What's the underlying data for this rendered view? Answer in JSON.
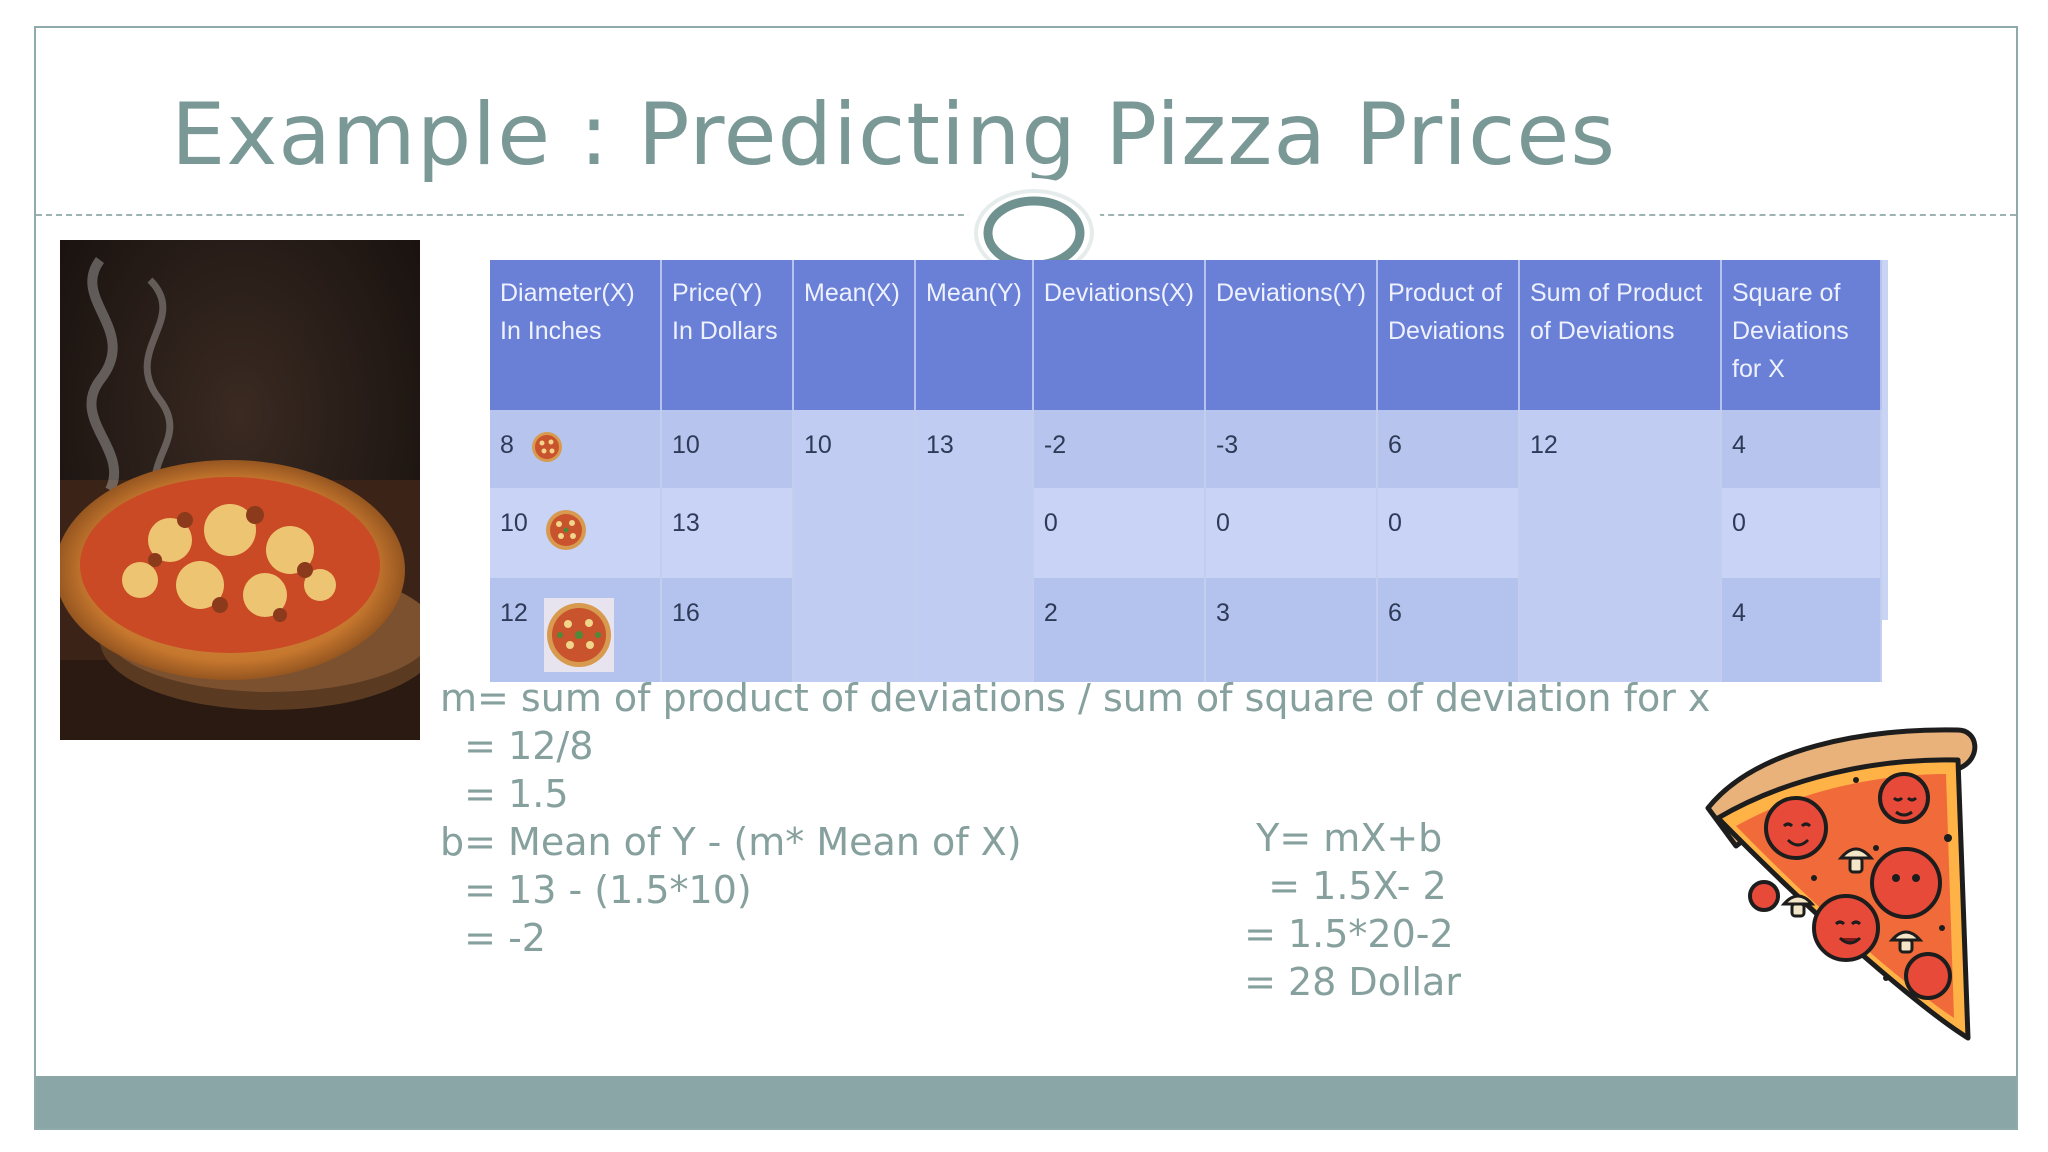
{
  "slide": {
    "title": "Example : Predicting Pizza Prices"
  },
  "table": {
    "headers": [
      "Diameter(X) In Inches",
      "Price(Y) In Dollars",
      "Mean(X)",
      "Mean(Y)",
      "Deviations(X)",
      "Deviations(Y)",
      "Product of Deviations",
      "Sum of Product of Deviations",
      "Square of Deviations for X"
    ],
    "rows": [
      {
        "diameter": "8",
        "price": "10",
        "dev_x": "-2",
        "dev_y": "-3",
        "product": "6",
        "square": "4"
      },
      {
        "diameter": "10",
        "price": "13",
        "dev_x": "0",
        "dev_y": "0",
        "product": "0",
        "square": "0"
      },
      {
        "diameter": "12",
        "price": "16",
        "dev_x": "2",
        "dev_y": "3",
        "product": "6",
        "square": "4"
      }
    ],
    "mean_x": "10",
    "mean_y": "13",
    "sum_product": "12"
  },
  "formulas": {
    "m_lines": [
      "m= sum of product of deviations / sum of square of deviation for x",
      "  = 12/8",
      "  = 1.5"
    ],
    "b_lines": [
      "b= Mean of Y - (m* Mean of X)",
      "  = 13 - (1.5*10)",
      "  = -2"
    ],
    "y_lines": [
      "  Y= mX+b",
      "   = 1.5X- 2",
      " = 1.5*20-2",
      " = 28 Dollar"
    ]
  },
  "colors": {
    "title": "#7a9996",
    "accent_band": "#8aa6a6",
    "table_header": "#6a80d6",
    "table_body": "#b7c5ee"
  }
}
